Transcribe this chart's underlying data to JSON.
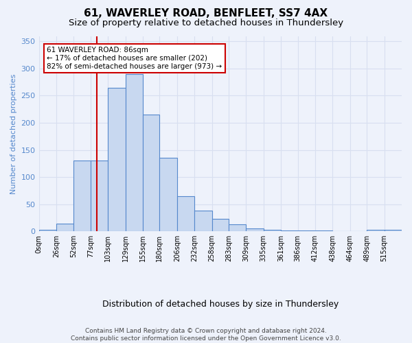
{
  "title1": "61, WAVERLEY ROAD, BENFLEET, SS7 4AX",
  "title2": "Size of property relative to detached houses in Thundersley",
  "xlabel": "Distribution of detached houses by size in Thundersley",
  "ylabel": "Number of detached properties",
  "bin_edges": [
    0,
    26,
    52,
    77,
    103,
    129,
    155,
    180,
    206,
    232,
    258,
    283,
    309,
    335,
    361,
    386,
    412,
    438,
    464,
    489,
    515,
    541
  ],
  "bar_heights": [
    3,
    14,
    130,
    130,
    265,
    290,
    215,
    135,
    65,
    38,
    23,
    13,
    5,
    3,
    2,
    1,
    1,
    0,
    0,
    3,
    3
  ],
  "bar_color": "#c8d8f0",
  "bar_edge_color": "#5588cc",
  "property_size": 86,
  "red_line_color": "#cc0000",
  "annotation_text": "61 WAVERLEY ROAD: 86sqm\n← 17% of detached houses are smaller (202)\n82% of semi-detached houses are larger (973) →",
  "annotation_box_color": "#ffffff",
  "annotation_box_edge_color": "#cc0000",
  "footer_text": "Contains HM Land Registry data © Crown copyright and database right 2024.\nContains public sector information licensed under the Open Government Licence v3.0.",
  "ylim": [
    0,
    360
  ],
  "yticks": [
    0,
    50,
    100,
    150,
    200,
    250,
    300,
    350
  ],
  "bg_color": "#eef2fb",
  "grid_color": "#d8dff0",
  "title1_fontsize": 11,
  "title2_fontsize": 9.5,
  "ylabel_color": "#5588cc",
  "ylabel_fontsize": 8,
  "xlabel_fontsize": 9,
  "tick_fontsize": 7,
  "footer_fontsize": 6.5,
  "footer_color": "#444444"
}
